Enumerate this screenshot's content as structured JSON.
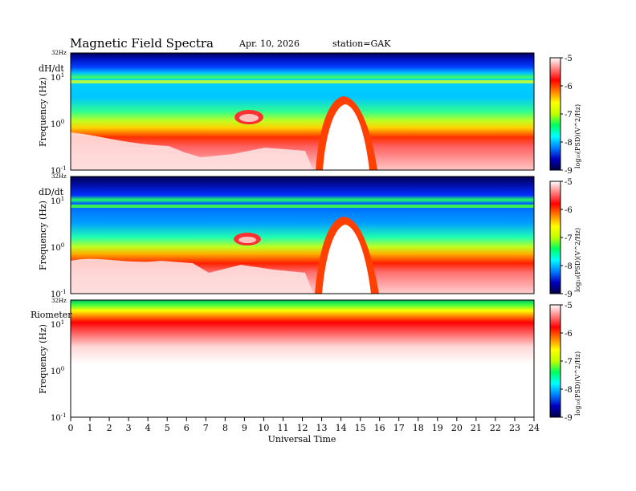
{
  "header": {
    "title": "Magnetic  Field  Spectra",
    "date": "Apr. 10, 2026",
    "station": "station=GAK"
  },
  "chart_data": {
    "type": "heatmap",
    "panels": [
      {
        "name": "dH/dt",
        "ylabel": "Frequency (Hz)",
        "ymax_label": "32Hz",
        "yticks": [
          {
            "base": "10",
            "exp": "1",
            "value": 10
          },
          {
            "base": "10",
            "exp": "0",
            "value": 1
          },
          {
            "base": "10",
            "exp": "-1",
            "value": 0.1
          }
        ]
      },
      {
        "name": "dD/dt",
        "ylabel": "Frequency (Hz)",
        "ymax_label": "32Hz",
        "yticks": [
          {
            "base": "10",
            "exp": "1",
            "value": 10
          },
          {
            "base": "10",
            "exp": "0",
            "value": 1
          },
          {
            "base": "10",
            "exp": "-1",
            "value": 0.1
          }
        ]
      },
      {
        "name": "Riometer",
        "ylabel": "Frequency (Hz)",
        "ymax_label": "32Hz",
        "yticks": [
          {
            "base": "10",
            "exp": "1",
            "value": 10
          },
          {
            "base": "10",
            "exp": "0",
            "value": 1
          },
          {
            "base": "10",
            "exp": "-1",
            "value": 0.1
          }
        ]
      }
    ],
    "xaxis": {
      "label": "Universal Time",
      "range": [
        0,
        24
      ],
      "ticks": [
        "0",
        "1",
        "2",
        "3",
        "4",
        "5",
        "6",
        "7",
        "8",
        "9",
        "10",
        "11",
        "12",
        "13",
        "14",
        "15",
        "16",
        "17",
        "18",
        "19",
        "20",
        "21",
        "22",
        "23",
        "24"
      ]
    },
    "yrange": [
      0.1,
      32
    ],
    "colorbar": {
      "label": "log₁₀(PSD)(V^2/Hz)",
      "range": [
        -9,
        -5
      ],
      "ticks": [
        "-5",
        "-6",
        "-7",
        "-8",
        "-9"
      ],
      "colors": [
        "#000040",
        "#0000c0",
        "#0080ff",
        "#00ffff",
        "#00ff60",
        "#c0ff00",
        "#ffff00",
        "#ff8000",
        "#ff0000",
        "#ff8080",
        "#ffffff"
      ]
    }
  }
}
